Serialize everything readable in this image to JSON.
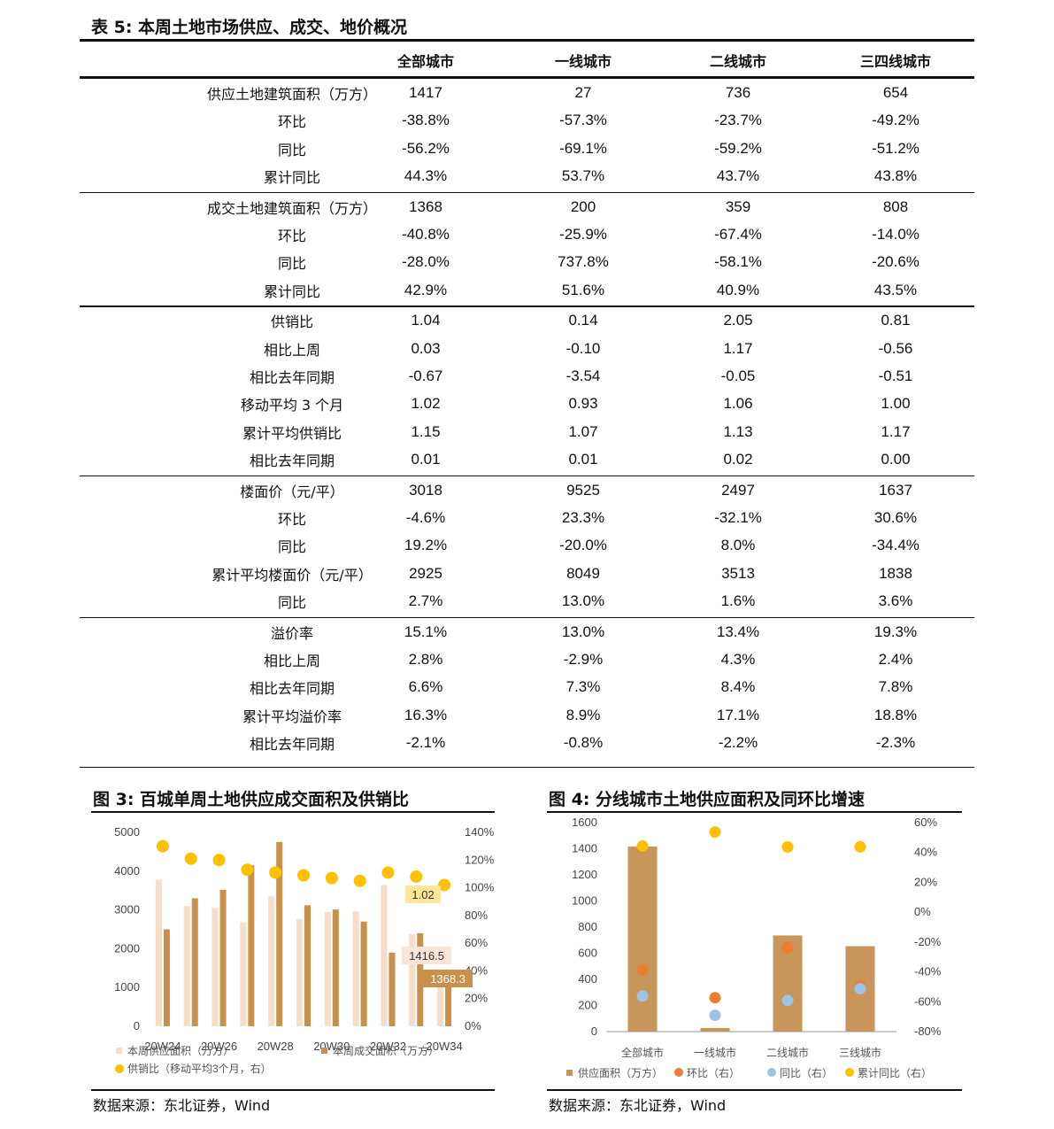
{
  "table": {
    "title": "表 5:  本周土地市场供应、成交、地价概况",
    "columns": [
      "全部城市",
      "一线城市",
      "二线城市",
      "三四线城市"
    ],
    "groups": [
      {
        "rows": [
          {
            "label": "供应土地建筑面积（万方）",
            "values": [
              "1417",
              "27",
              "736",
              "654"
            ]
          },
          {
            "label": "环比",
            "values": [
              "-38.8%",
              "-57.3%",
              "-23.7%",
              "-49.2%"
            ]
          },
          {
            "label": "同比",
            "values": [
              "-56.2%",
              "-69.1%",
              "-59.2%",
              "-51.2%"
            ]
          },
          {
            "label": "累计同比",
            "values": [
              "44.3%",
              "53.7%",
              "43.7%",
              "43.8%"
            ]
          }
        ]
      },
      {
        "rows": [
          {
            "label": "成交土地建筑面积（万方）",
            "values": [
              "1368",
              "200",
              "359",
              "808"
            ]
          },
          {
            "label": "环比",
            "values": [
              "-40.8%",
              "-25.9%",
              "-67.4%",
              "-14.0%"
            ]
          },
          {
            "label": "同比",
            "values": [
              "-28.0%",
              "737.8%",
              "-58.1%",
              "-20.6%"
            ]
          },
          {
            "label": "累计同比",
            "values": [
              "42.9%",
              "51.6%",
              "40.9%",
              "43.5%"
            ]
          }
        ]
      },
      {
        "rows": [
          {
            "label": "供销比",
            "values": [
              "1.04",
              "0.14",
              "2.05",
              "0.81"
            ]
          },
          {
            "label": "相比上周",
            "values": [
              "0.03",
              "-0.10",
              "1.17",
              "-0.56"
            ]
          },
          {
            "label": "相比去年同期",
            "values": [
              "-0.67",
              "-3.54",
              "-0.05",
              "-0.51"
            ]
          },
          {
            "label": "移动平均 3 个月",
            "values": [
              "1.02",
              "0.93",
              "1.06",
              "1.00"
            ]
          },
          {
            "label": "累计平均供销比",
            "values": [
              "1.15",
              "1.07",
              "1.13",
              "1.17"
            ]
          },
          {
            "label": "相比去年同期",
            "values": [
              "0.01",
              "0.01",
              "0.02",
              "0.00"
            ]
          }
        ]
      },
      {
        "rows": [
          {
            "label": "楼面价（元/平）",
            "values": [
              "3018",
              "9525",
              "2497",
              "1637"
            ]
          },
          {
            "label": "环比",
            "values": [
              "-4.6%",
              "23.3%",
              "-32.1%",
              "30.6%"
            ]
          },
          {
            "label": "同比",
            "values": [
              "19.2%",
              "-20.0%",
              "8.0%",
              "-34.4%"
            ]
          },
          {
            "label": "累计平均楼面价（元/平）",
            "values": [
              "2925",
              "8049",
              "3513",
              "1838"
            ]
          },
          {
            "label": "同比",
            "values": [
              "2.7%",
              "13.0%",
              "1.6%",
              "3.6%"
            ]
          }
        ]
      },
      {
        "rows": [
          {
            "label": "溢价率",
            "values": [
              "15.1%",
              "13.0%",
              "13.4%",
              "19.3%"
            ]
          },
          {
            "label": "相比上周",
            "values": [
              "2.8%",
              "-2.9%",
              "4.3%",
              "2.4%"
            ]
          },
          {
            "label": "相比去年同期",
            "values": [
              "6.6%",
              "7.3%",
              "8.4%",
              "7.8%"
            ]
          },
          {
            "label": "累计平均溢价率",
            "values": [
              "16.3%",
              "8.9%",
              "17.1%",
              "18.8%"
            ]
          },
          {
            "label": "相比去年同期",
            "values": [
              "-2.1%",
              "-0.8%",
              "-2.2%",
              "-2.3%"
            ]
          }
        ]
      }
    ]
  },
  "figure3": {
    "title": "图 3:  百城单周土地供应成交面积及供销比",
    "source": "数据来源：东北证券，Wind"
  },
  "figure4": {
    "title": "图 4:  分线城市土地供应面积及同环比增速",
    "source": "数据来源：东北证券，Wind"
  },
  "chart_data": [
    {
      "type": "bar",
      "title": "图 3:  百城单周土地供应成交面积及供销比",
      "x_ticks": [
        "20W24",
        "20W26",
        "20W28",
        "20W30",
        "20W32",
        "20W34"
      ],
      "yticks_left": [
        "0",
        "1000",
        "2000",
        "3000",
        "4000",
        "5000"
      ],
      "yticks_right": [
        "0%",
        "20%",
        "40%",
        "60%",
        "80%",
        "100%",
        "120%",
        "140%"
      ],
      "ylim_left": [
        0,
        5000
      ],
      "ylim_right": [
        0,
        140
      ],
      "series": [
        {
          "name": "本周供应面积（万方）",
          "axis": "left",
          "color": "#f8ddc8",
          "values": [
            3780,
            3100,
            3050,
            2680,
            3350,
            2760,
            2950,
            2960,
            3640,
            2380,
            1416.5
          ]
        },
        {
          "name": "本周成交面积（万方）",
          "axis": "left",
          "color": "#c89048",
          "values": [
            2500,
            3300,
            3520,
            4150,
            4750,
            3120,
            3010,
            2700,
            1900,
            2400,
            1368.3
          ]
        },
        {
          "name": "供销比（移动平均3个月，右）",
          "axis": "right",
          "color": "#ffc000",
          "type": "scatter",
          "values": [
            130,
            121,
            120,
            113,
            111,
            109,
            107,
            105,
            111,
            108,
            102
          ]
        }
      ],
      "data_labels": [
        "1.02",
        "1416.5",
        "1368.3"
      ],
      "legend": [
        "本周供应面积（万方）",
        "本周成交面积（万方）",
        "供销比（移动平均3个月，右）"
      ]
    },
    {
      "type": "bar",
      "title": "图 4:  分线城市土地供应面积及同环比增速",
      "categories": [
        "全部城市",
        "一线城市",
        "二线城市",
        "三线城市"
      ],
      "yticks_left": [
        "0",
        "200",
        "400",
        "600",
        "800",
        "1000",
        "1200",
        "1400",
        "1600"
      ],
      "yticks_right": [
        "-80%",
        "-60%",
        "-40%",
        "-20%",
        "0%",
        "20%",
        "40%",
        "60%"
      ],
      "ylim_left": [
        0,
        1600
      ],
      "ylim_right": [
        -80,
        60
      ],
      "series": [
        {
          "name": "供应面积（万方）",
          "axis": "left",
          "type": "bar",
          "color": "#c8955a",
          "values": [
            1417,
            27,
            736,
            654
          ]
        },
        {
          "name": "环比（右）",
          "axis": "right",
          "type": "scatter",
          "color": "#ed7d31",
          "values": [
            -38.8,
            -57.3,
            -23.7,
            -49.2
          ]
        },
        {
          "name": "同比（右）",
          "axis": "right",
          "type": "scatter",
          "color": "#9dc3e6",
          "values": [
            -56.2,
            -69.1,
            -59.2,
            -51.2
          ]
        },
        {
          "name": "累计同比（右）",
          "axis": "right",
          "type": "scatter",
          "color": "#ffc000",
          "values": [
            44.3,
            53.7,
            43.7,
            43.8
          ]
        }
      ],
      "legend": [
        "供应面积（万方）",
        "环比（右）",
        "同比（右）",
        "累计同比（右）"
      ]
    }
  ]
}
